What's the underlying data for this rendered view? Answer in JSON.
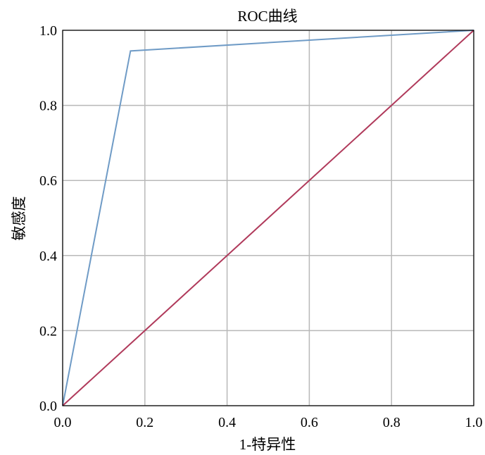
{
  "chart_data": {
    "type": "line",
    "title": "ROC曲线",
    "xlabel": "1-特异性",
    "ylabel": "敏感度",
    "xlim": [
      0,
      1
    ],
    "ylim": [
      0,
      1
    ],
    "xticks": [
      "0.0",
      "0.2",
      "0.4",
      "0.6",
      "0.8",
      "1.0"
    ],
    "yticks": [
      "0.0",
      "0.2",
      "0.4",
      "0.6",
      "0.8",
      "1.0"
    ],
    "grid": true,
    "legend": "none",
    "series": [
      {
        "color": "#6f9bc6",
        "x": [
          0.0,
          0.165,
          1.0
        ],
        "y": [
          0.0,
          0.945,
          1.0
        ]
      },
      {
        "color": "#b03a5b",
        "x": [
          0.0,
          1.0
        ],
        "y": [
          0.0,
          1.0
        ]
      }
    ]
  }
}
